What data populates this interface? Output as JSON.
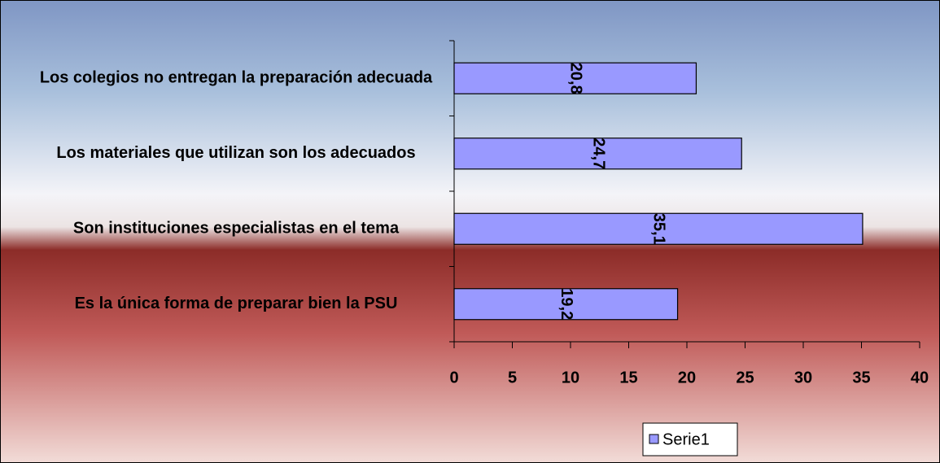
{
  "chart_data": {
    "type": "bar",
    "orientation": "horizontal",
    "categories": [
      "Los colegios no entregan la preparación adecuada",
      "Los materiales que utilizan son los adecuados",
      "Son instituciones especialistas en el tema",
      "Es la única forma de preparar bien la PSU"
    ],
    "series": [
      {
        "name": "Serie1",
        "color": "#9999ff",
        "values": [
          20.8,
          24.7,
          35.1,
          19.2
        ],
        "value_labels": [
          "20,8",
          "24,7",
          "35,1",
          "19,2"
        ]
      }
    ],
    "xlim": [
      0,
      40
    ],
    "xticks": [
      0,
      5,
      10,
      15,
      20,
      25,
      30,
      35,
      40
    ],
    "legend": "bottom"
  }
}
